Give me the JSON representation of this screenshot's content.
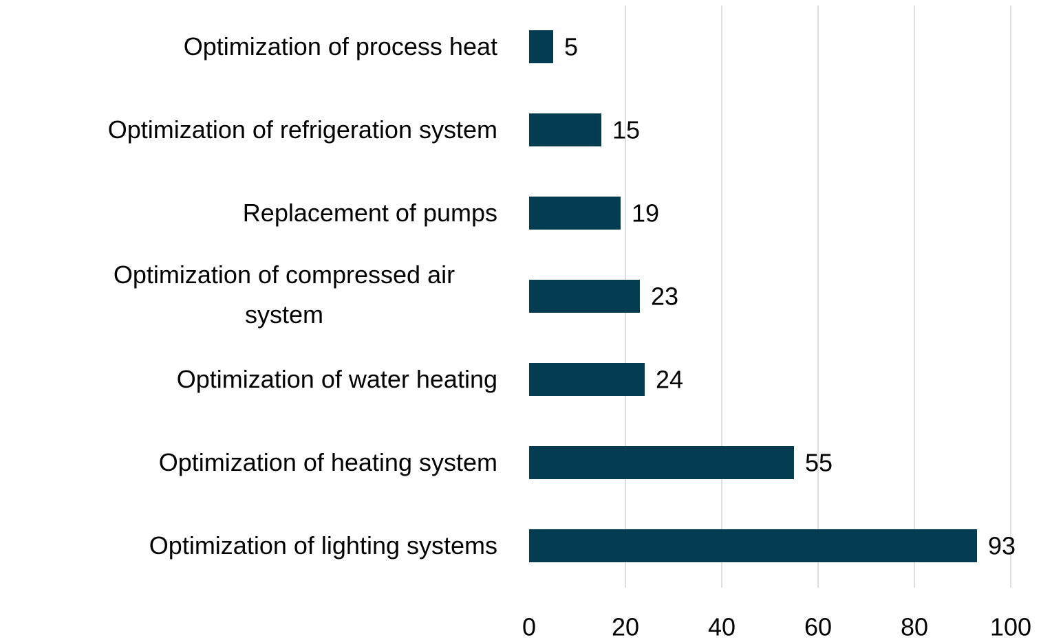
{
  "chart_data": {
    "type": "bar",
    "orientation": "horizontal",
    "categories": [
      "Optimization of process heat",
      "Optimization of refrigeration system",
      "Replacement of pumps",
      "Optimization of compressed air system",
      "Optimization of water heating",
      "Optimization of heating system",
      "Optimization of lighting systems"
    ],
    "values": [
      5,
      15,
      19,
      23,
      24,
      55,
      93
    ],
    "color": "#033c50",
    "xlim": [
      0,
      100
    ],
    "xticks": [
      0,
      20,
      40,
      60,
      80,
      100
    ],
    "grid": true
  }
}
